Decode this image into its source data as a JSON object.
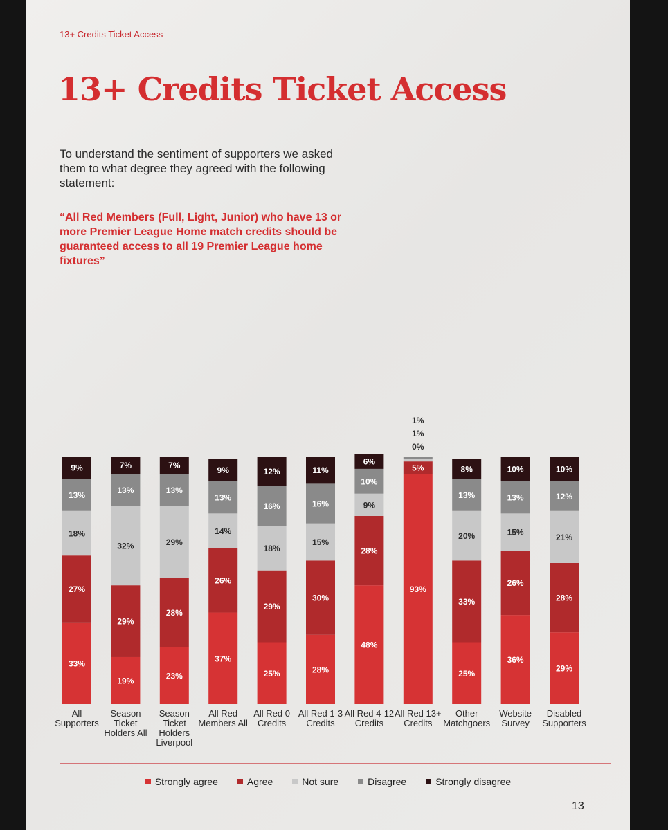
{
  "header": {
    "running_title": "13+ Credits Ticket Access",
    "title": "13+ Credits Ticket Access",
    "intro": "To understand the sentiment of supporters we asked them to what degree they agreed with the following statement:",
    "quote": "“All Red Members (Full, Light, Junior) who have 13 or more Premier League Home match credits should be guaranteed access to all 19 Premier League home fixtures”"
  },
  "page_number": "13",
  "colors": {
    "strongly_agree": "#d63334",
    "agree": "#b02a2c",
    "not_sure": "#c8c8c8",
    "disagree": "#8a8a8a",
    "strongly_disagree": "#2c1113"
  },
  "chart_data": {
    "type": "bar",
    "stacked": true,
    "ylim": [
      0,
      100
    ],
    "grid": false,
    "legend_position": "bottom",
    "categories": [
      "All Supporters",
      "Season Ticket Holders All",
      "Season Ticket Holders Liverpool",
      "All Red Members All",
      "All Red 0 Credits",
      "All Red 1-3 Credits",
      "All Red 4-12 Credits",
      "All Red 13+ Credits",
      "Other Matchgoers",
      "Website Survey",
      "Disabled Supporters"
    ],
    "series": [
      {
        "name": "Strongly agree",
        "values": [
          33,
          19,
          23,
          37,
          25,
          28,
          48,
          93,
          25,
          36,
          29
        ]
      },
      {
        "name": "Agree",
        "values": [
          27,
          29,
          28,
          26,
          29,
          30,
          28,
          5,
          33,
          26,
          28
        ]
      },
      {
        "name": "Not sure",
        "values": [
          18,
          32,
          29,
          14,
          18,
          15,
          9,
          1,
          20,
          15,
          21
        ]
      },
      {
        "name": "Disagree",
        "values": [
          13,
          13,
          13,
          13,
          16,
          16,
          10,
          1,
          13,
          13,
          12
        ]
      },
      {
        "name": "Strongly disagree",
        "values": [
          9,
          7,
          7,
          9,
          12,
          11,
          6,
          0,
          8,
          10,
          10
        ]
      }
    ]
  }
}
